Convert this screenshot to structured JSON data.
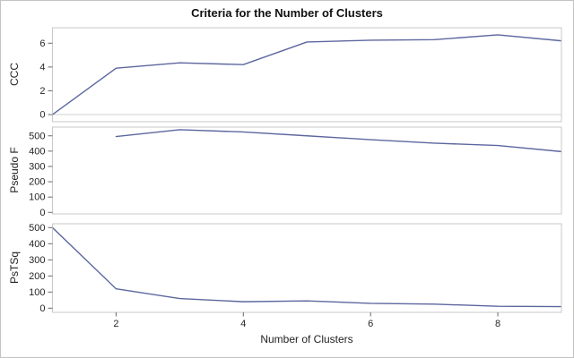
{
  "chart_data": {
    "type": "line",
    "title": "Criteria for the Number of Clusters",
    "xlabel": "Number of Clusters",
    "x": [
      1,
      2,
      3,
      4,
      5,
      6,
      7,
      8,
      9
    ],
    "xlim": [
      1,
      9
    ],
    "xticks": [
      2,
      4,
      6,
      8
    ],
    "grid": false,
    "legend": "none",
    "panels": [
      {
        "ylabel": "CCC",
        "ylim": [
          -0.6,
          7.3
        ],
        "yticks": [
          0,
          2,
          4,
          6
        ],
        "refline_at": 0,
        "values": [
          0.0,
          3.9,
          4.35,
          4.2,
          6.1,
          6.25,
          6.3,
          6.7,
          6.2
        ]
      },
      {
        "ylabel": "Pseudo F",
        "ylim": [
          -10,
          557
        ],
        "yticks": [
          0,
          100,
          200,
          300,
          400,
          500
        ],
        "refline_at": null,
        "values": [
          null,
          495,
          540,
          525,
          500,
          475,
          452,
          437,
          397
        ]
      },
      {
        "ylabel": "PsTSq",
        "ylim": [
          -26,
          524
        ],
        "yticks": [
          0,
          100,
          200,
          300,
          400,
          500
        ],
        "refline_at": null,
        "values": [
          500,
          120,
          60,
          40,
          45,
          30,
          25,
          12,
          10
        ]
      }
    ],
    "colors": {
      "line": "#5c679f",
      "panel_border": "#c9c9c9",
      "refline": "#d0d0d0",
      "tick": "#6a6a6a",
      "tick_text": "#262626",
      "figure_border": "#c3c3c3"
    }
  }
}
